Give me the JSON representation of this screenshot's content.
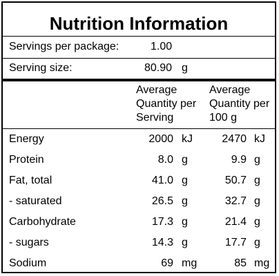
{
  "title": "Nutrition Information",
  "servings": {
    "label": "Servings per package:",
    "value": "1.00"
  },
  "serving_size": {
    "label": "Serving size:",
    "value": "80.90",
    "unit": "g"
  },
  "columns": {
    "per_serving": [
      "Average",
      "Quantity per",
      "Serving"
    ],
    "per_100g": [
      "Average",
      "Quantity per",
      "100 g"
    ]
  },
  "rows": [
    {
      "name": "Energy",
      "serving": "2000",
      "serving_unit": "kJ",
      "per100": "2470",
      "per100_unit": "kJ"
    },
    {
      "name": "Protein",
      "serving": "8.0",
      "serving_unit": "g",
      "per100": "9.9",
      "per100_unit": "g"
    },
    {
      "name": "Fat, total",
      "serving": "41.0",
      "serving_unit": "g",
      "per100": "50.7",
      "per100_unit": "g"
    },
    {
      "name": "- saturated",
      "serving": "26.5",
      "serving_unit": "g",
      "per100": "32.7",
      "per100_unit": "g"
    },
    {
      "name": "Carbohydrate",
      "serving": "17.3",
      "serving_unit": "g",
      "per100": "21.4",
      "per100_unit": "g"
    },
    {
      "name": "- sugars",
      "serving": "14.3",
      "serving_unit": "g",
      "per100": "17.7",
      "per100_unit": "g"
    },
    {
      "name": "Sodium",
      "serving": "69",
      "serving_unit": "mg",
      "per100": "85",
      "per100_unit": "mg"
    }
  ]
}
